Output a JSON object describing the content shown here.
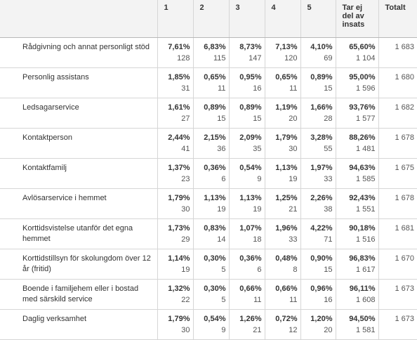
{
  "headers": {
    "h1": "1",
    "h2": "2",
    "h3": "3",
    "h4": "4",
    "h5": "5",
    "tar": "Tar ej del av insats",
    "total": "Totalt"
  },
  "rows": [
    {
      "label": "Rådgivning och annat personligt stöd",
      "cells": [
        {
          "pct": "7,61%",
          "n": "128"
        },
        {
          "pct": "6,83%",
          "n": "115"
        },
        {
          "pct": "8,73%",
          "n": "147"
        },
        {
          "pct": "7,13%",
          "n": "120"
        },
        {
          "pct": "4,10%",
          "n": "69"
        },
        {
          "pct": "65,60%",
          "n": "1 104"
        }
      ],
      "total": "1 683"
    },
    {
      "label": "Personlig assistans",
      "cells": [
        {
          "pct": "1,85%",
          "n": "31"
        },
        {
          "pct": "0,65%",
          "n": "11"
        },
        {
          "pct": "0,95%",
          "n": "16"
        },
        {
          "pct": "0,65%",
          "n": "11"
        },
        {
          "pct": "0,89%",
          "n": "15"
        },
        {
          "pct": "95,00%",
          "n": "1 596"
        }
      ],
      "total": "1 680"
    },
    {
      "label": "Ledsagarservice",
      "cells": [
        {
          "pct": "1,61%",
          "n": "27"
        },
        {
          "pct": "0,89%",
          "n": "15"
        },
        {
          "pct": "0,89%",
          "n": "15"
        },
        {
          "pct": "1,19%",
          "n": "20"
        },
        {
          "pct": "1,66%",
          "n": "28"
        },
        {
          "pct": "93,76%",
          "n": "1 577"
        }
      ],
      "total": "1 682"
    },
    {
      "label": "Kontaktperson",
      "cells": [
        {
          "pct": "2,44%",
          "n": "41"
        },
        {
          "pct": "2,15%",
          "n": "36"
        },
        {
          "pct": "2,09%",
          "n": "35"
        },
        {
          "pct": "1,79%",
          "n": "30"
        },
        {
          "pct": "3,28%",
          "n": "55"
        },
        {
          "pct": "88,26%",
          "n": "1 481"
        }
      ],
      "total": "1 678"
    },
    {
      "label": "Kontaktfamilj",
      "cells": [
        {
          "pct": "1,37%",
          "n": "23"
        },
        {
          "pct": "0,36%",
          "n": "6"
        },
        {
          "pct": "0,54%",
          "n": "9"
        },
        {
          "pct": "1,13%",
          "n": "19"
        },
        {
          "pct": "1,97%",
          "n": "33"
        },
        {
          "pct": "94,63%",
          "n": "1 585"
        }
      ],
      "total": "1 675"
    },
    {
      "label": "Avlösarservice i hemmet",
      "cells": [
        {
          "pct": "1,79%",
          "n": "30"
        },
        {
          "pct": "1,13%",
          "n": "19"
        },
        {
          "pct": "1,13%",
          "n": "19"
        },
        {
          "pct": "1,25%",
          "n": "21"
        },
        {
          "pct": "2,26%",
          "n": "38"
        },
        {
          "pct": "92,43%",
          "n": "1 551"
        }
      ],
      "total": "1 678"
    },
    {
      "label": "Korttidsvistelse utanför det egna hemmet",
      "cells": [
        {
          "pct": "1,73%",
          "n": "29"
        },
        {
          "pct": "0,83%",
          "n": "14"
        },
        {
          "pct": "1,07%",
          "n": "18"
        },
        {
          "pct": "1,96%",
          "n": "33"
        },
        {
          "pct": "4,22%",
          "n": "71"
        },
        {
          "pct": "90,18%",
          "n": "1 516"
        }
      ],
      "total": "1 681"
    },
    {
      "label": "Korttidstillsyn för skolungdom över 12 år (fritid)",
      "cells": [
        {
          "pct": "1,14%",
          "n": "19"
        },
        {
          "pct": "0,30%",
          "n": "5"
        },
        {
          "pct": "0,36%",
          "n": "6"
        },
        {
          "pct": "0,48%",
          "n": "8"
        },
        {
          "pct": "0,90%",
          "n": "15"
        },
        {
          "pct": "96,83%",
          "n": "1 617"
        }
      ],
      "total": "1 670"
    },
    {
      "label": "Boende i familjehem eller i bostad med särskild service",
      "cells": [
        {
          "pct": "1,32%",
          "n": "22"
        },
        {
          "pct": "0,30%",
          "n": "5"
        },
        {
          "pct": "0,66%",
          "n": "11"
        },
        {
          "pct": "0,66%",
          "n": "11"
        },
        {
          "pct": "0,96%",
          "n": "16"
        },
        {
          "pct": "96,11%",
          "n": "1 608"
        }
      ],
      "total": "1 673"
    },
    {
      "label": "Daglig verksamhet",
      "cells": [
        {
          "pct": "1,79%",
          "n": "30"
        },
        {
          "pct": "0,54%",
          "n": "9"
        },
        {
          "pct": "1,26%",
          "n": "21"
        },
        {
          "pct": "0,72%",
          "n": "12"
        },
        {
          "pct": "1,20%",
          "n": "20"
        },
        {
          "pct": "94,50%",
          "n": "1 581"
        }
      ],
      "total": "1 673"
    }
  ]
}
